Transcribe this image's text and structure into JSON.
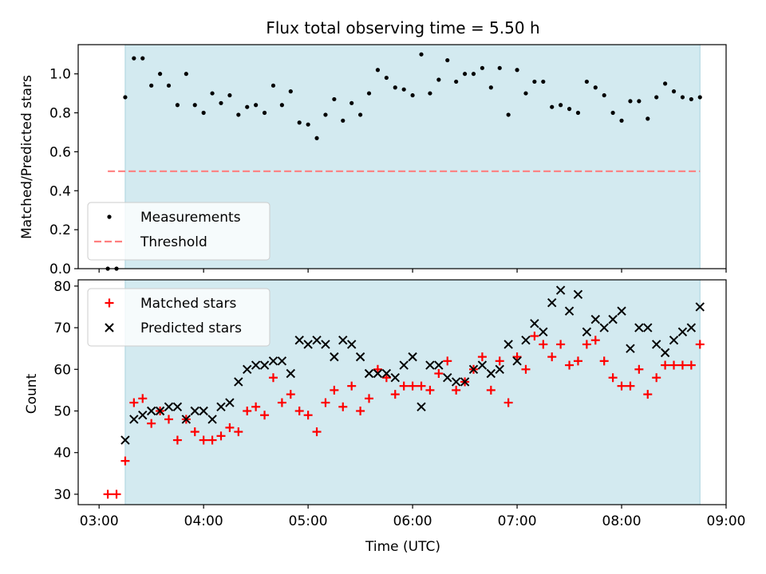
{
  "chart_data": [
    {
      "type": "scatter",
      "title": "Flux total observing time = 5.50 h",
      "xlabel": "",
      "ylabel": "Matched/Predicted stars",
      "ylim": [
        0.0,
        1.15
      ],
      "xlim": [
        "02:48",
        "09:00"
      ],
      "yticks": [
        "0.0",
        "0.2",
        "0.4",
        "0.6",
        "0.8",
        "1.0"
      ],
      "grid": false,
      "legend_position": "lower-left",
      "observing_window": [
        "03:15",
        "08:45"
      ],
      "observing_window_color": "#d3eaf0",
      "threshold": {
        "name": "Threshold",
        "value": 0.5,
        "x_start": "03:05",
        "x_end": "08:45",
        "color": "#ff7f7f",
        "style": "dashed"
      },
      "series": [
        {
          "name": "Measurements",
          "color": "#000000",
          "marker": "dot",
          "x": [
            "03:05",
            "03:10",
            "03:15",
            "03:20",
            "03:25",
            "03:30",
            "03:35",
            "03:40",
            "03:45",
            "03:50",
            "03:55",
            "04:00",
            "04:05",
            "04:10",
            "04:15",
            "04:20",
            "04:25",
            "04:30",
            "04:35",
            "04:40",
            "04:45",
            "04:50",
            "04:55",
            "05:00",
            "05:05",
            "05:10",
            "05:15",
            "05:20",
            "05:25",
            "05:30",
            "05:35",
            "05:40",
            "05:45",
            "05:50",
            "05:55",
            "06:00",
            "06:05",
            "06:10",
            "06:15",
            "06:20",
            "06:25",
            "06:30",
            "06:35",
            "06:40",
            "06:45",
            "06:50",
            "06:55",
            "07:00",
            "07:05",
            "07:10",
            "07:15",
            "07:20",
            "07:25",
            "07:30",
            "07:35",
            "07:40",
            "07:45",
            "07:50",
            "07:55",
            "08:00",
            "08:05",
            "08:10",
            "08:15",
            "08:20",
            "08:25",
            "08:30",
            "08:35",
            "08:40",
            "08:45"
          ],
          "y": [
            0.0,
            0.0,
            0.88,
            1.08,
            1.08,
            0.94,
            1.0,
            0.94,
            0.84,
            1.0,
            0.84,
            0.8,
            0.9,
            0.85,
            0.89,
            0.79,
            0.83,
            0.84,
            0.8,
            0.94,
            0.84,
            0.91,
            0.75,
            0.74,
            0.67,
            0.79,
            0.87,
            0.76,
            0.85,
            0.79,
            0.9,
            1.02,
            0.98,
            0.93,
            0.92,
            0.89,
            1.1,
            0.9,
            0.97,
            1.07,
            0.96,
            1.0,
            1.0,
            1.03,
            0.93,
            1.03,
            0.79,
            1.02,
            0.9,
            0.96,
            0.96,
            0.83,
            0.84,
            0.82,
            0.8,
            0.96,
            0.93,
            0.89,
            0.8,
            0.76,
            0.86,
            0.86,
            0.77,
            0.88,
            0.95,
            0.91,
            0.88,
            0.87,
            0.88
          ]
        }
      ]
    },
    {
      "type": "scatter",
      "title": "",
      "xlabel": "Time (UTC)",
      "ylabel": "Count",
      "ylim": [
        27.5,
        81.5
      ],
      "xlim": [
        "02:48",
        "09:00"
      ],
      "xticks": [
        "03:00",
        "04:00",
        "05:00",
        "06:00",
        "07:00",
        "08:00",
        "09:00"
      ],
      "yticks": [
        "30",
        "40",
        "50",
        "60",
        "70",
        "80"
      ],
      "grid": false,
      "legend_position": "upper-left",
      "observing_window": [
        "03:15",
        "08:45"
      ],
      "observing_window_color": "#d3eaf0",
      "series": [
        {
          "name": "Matched stars",
          "color": "#ff0000",
          "marker": "plus",
          "x": [
            "03:05",
            "03:10",
            "03:15",
            "03:20",
            "03:25",
            "03:30",
            "03:35",
            "03:40",
            "03:45",
            "03:50",
            "03:55",
            "04:00",
            "04:05",
            "04:10",
            "04:15",
            "04:20",
            "04:25",
            "04:30",
            "04:35",
            "04:40",
            "04:45",
            "04:50",
            "04:55",
            "05:00",
            "05:05",
            "05:10",
            "05:15",
            "05:20",
            "05:25",
            "05:30",
            "05:35",
            "05:40",
            "05:45",
            "05:50",
            "05:55",
            "06:00",
            "06:05",
            "06:10",
            "06:15",
            "06:20",
            "06:25",
            "06:30",
            "06:35",
            "06:40",
            "06:45",
            "06:50",
            "06:55",
            "07:00",
            "07:05",
            "07:10",
            "07:15",
            "07:20",
            "07:25",
            "07:30",
            "07:35",
            "07:40",
            "07:45",
            "07:50",
            "07:55",
            "08:00",
            "08:05",
            "08:10",
            "08:15",
            "08:20",
            "08:25",
            "08:30",
            "08:35",
            "08:40",
            "08:45"
          ],
          "y": [
            30,
            30,
            38,
            52,
            53,
            47,
            50,
            48,
            43,
            48,
            45,
            43,
            43,
            44,
            46,
            45,
            50,
            51,
            49,
            58,
            52,
            54,
            50,
            49,
            45,
            52,
            55,
            51,
            56,
            50,
            53,
            60,
            58,
            54,
            56,
            56,
            56,
            55,
            59,
            62,
            55,
            57,
            60,
            63,
            55,
            62,
            52,
            63,
            60,
            68,
            66,
            63,
            66,
            61,
            62,
            66,
            67,
            62,
            58,
            56,
            56,
            60,
            54,
            58,
            61,
            61,
            61,
            61,
            66
          ]
        },
        {
          "name": "Predicted stars",
          "color": "#000000",
          "marker": "x",
          "x": [
            "03:15",
            "03:20",
            "03:25",
            "03:30",
            "03:35",
            "03:40",
            "03:45",
            "03:50",
            "03:55",
            "04:00",
            "04:05",
            "04:10",
            "04:15",
            "04:20",
            "04:25",
            "04:30",
            "04:35",
            "04:40",
            "04:45",
            "04:50",
            "04:55",
            "05:00",
            "05:05",
            "05:10",
            "05:15",
            "05:20",
            "05:25",
            "05:30",
            "05:35",
            "05:40",
            "05:45",
            "05:50",
            "05:55",
            "06:00",
            "06:05",
            "06:10",
            "06:15",
            "06:20",
            "06:25",
            "06:30",
            "06:35",
            "06:40",
            "06:45",
            "06:50",
            "06:55",
            "07:00",
            "07:05",
            "07:10",
            "07:15",
            "07:20",
            "07:25",
            "07:30",
            "07:35",
            "07:40",
            "07:45",
            "07:50",
            "07:55",
            "08:00",
            "08:05",
            "08:10",
            "08:15",
            "08:20",
            "08:25",
            "08:30",
            "08:35",
            "08:40",
            "08:45"
          ],
          "y": [
            43,
            48,
            49,
            50,
            50,
            51,
            51,
            48,
            50,
            50,
            48,
            51,
            52,
            57,
            60,
            61,
            61,
            62,
            62,
            59,
            67,
            66,
            67,
            66,
            63,
            67,
            66,
            63,
            59,
            59,
            59,
            58,
            61,
            63,
            51,
            61,
            61,
            58,
            57,
            57,
            60,
            61,
            59,
            60,
            66,
            62,
            67,
            71,
            69,
            76,
            79,
            74,
            78,
            69,
            72,
            70,
            72,
            74,
            65,
            70,
            70,
            66,
            64,
            67,
            69,
            70,
            75
          ]
        }
      ]
    }
  ]
}
